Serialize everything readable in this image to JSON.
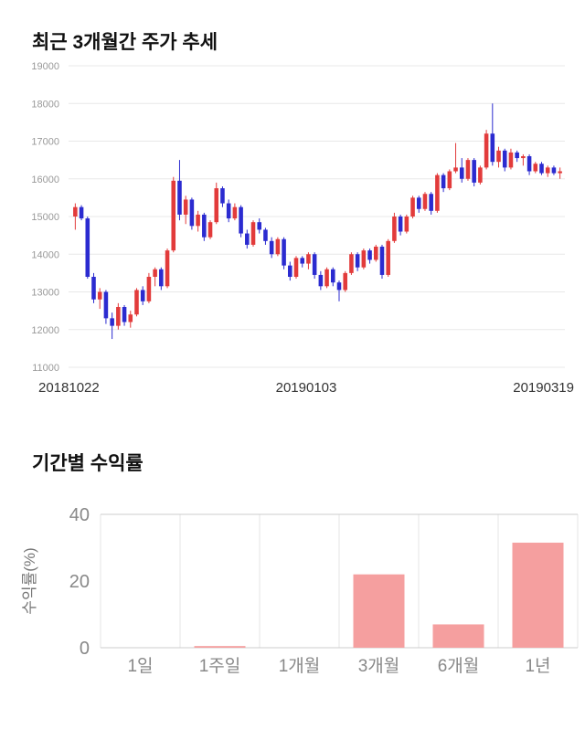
{
  "price_section": {
    "title": "최근 3개월간 주가 추세"
  },
  "returns_section": {
    "title": "기간별 수익률"
  },
  "chart_data": [
    {
      "type": "candlestick",
      "title": "최근 3개월간 주가 추세",
      "ylim": [
        11000,
        19000
      ],
      "yticks": [
        19000,
        18000,
        17000,
        16000,
        15000,
        14000,
        13000,
        12000,
        11000
      ],
      "xticklabels": [
        "20181022",
        "20190103",
        "20190319"
      ],
      "up_color": "#e23b3b",
      "down_color": "#2b2bd0",
      "grid_color": "#e8e8e8",
      "tick_color": "#999999",
      "candles": [
        [
          15000,
          15350,
          14650,
          15250
        ],
        [
          15250,
          15300,
          14900,
          14950
        ],
        [
          14950,
          15000,
          13350,
          13400
        ],
        [
          13400,
          13500,
          12700,
          12800
        ],
        [
          12800,
          13100,
          12550,
          13000
        ],
        [
          13000,
          13050,
          12150,
          12300
        ],
        [
          12300,
          12450,
          11750,
          12100
        ],
        [
          12100,
          12700,
          12000,
          12600
        ],
        [
          12600,
          12650,
          12100,
          12200
        ],
        [
          12200,
          12500,
          12050,
          12400
        ],
        [
          12400,
          13100,
          12350,
          13050
        ],
        [
          13050,
          13150,
          12650,
          12750
        ],
        [
          12750,
          13500,
          12700,
          13400
        ],
        [
          13400,
          13650,
          13150,
          13600
        ],
        [
          13600,
          13650,
          13050,
          13150
        ],
        [
          13150,
          14150,
          13100,
          14100
        ],
        [
          14100,
          16050,
          14050,
          15950
        ],
        [
          15950,
          16500,
          14900,
          15050
        ],
        [
          15050,
          15550,
          14800,
          15450
        ],
        [
          15450,
          15500,
          14650,
          14750
        ],
        [
          14750,
          15150,
          14600,
          15050
        ],
        [
          15050,
          15100,
          14350,
          14450
        ],
        [
          14450,
          14900,
          14400,
          14850
        ],
        [
          14850,
          15900,
          14800,
          15750
        ],
        [
          15750,
          15800,
          15250,
          15350
        ],
        [
          15350,
          15450,
          14850,
          14950
        ],
        [
          14950,
          15350,
          14900,
          15250
        ],
        [
          15250,
          15300,
          14450,
          14550
        ],
        [
          14550,
          14650,
          14150,
          14250
        ],
        [
          14250,
          14900,
          14200,
          14850
        ],
        [
          14850,
          14950,
          14550,
          14650
        ],
        [
          14650,
          14700,
          14250,
          14350
        ],
        [
          14350,
          14450,
          13900,
          14000
        ],
        [
          14000,
          14450,
          13950,
          14400
        ],
        [
          14400,
          14450,
          13600,
          13700
        ],
        [
          13700,
          13800,
          13300,
          13400
        ],
        [
          13400,
          13950,
          13350,
          13900
        ],
        [
          13900,
          13950,
          13650,
          13750
        ],
        [
          13750,
          14050,
          13600,
          14000
        ],
        [
          14000,
          14050,
          13350,
          13450
        ],
        [
          13450,
          13550,
          13050,
          13150
        ],
        [
          13150,
          13650,
          13100,
          13600
        ],
        [
          13600,
          13650,
          13150,
          13250
        ],
        [
          13250,
          13300,
          12750,
          13050
        ],
        [
          13050,
          13550,
          13000,
          13500
        ],
        [
          13500,
          14050,
          13450,
          14000
        ],
        [
          14000,
          14050,
          13550,
          13650
        ],
        [
          13650,
          14150,
          13600,
          14100
        ],
        [
          14100,
          14150,
          13750,
          13850
        ],
        [
          13850,
          14250,
          13800,
          14200
        ],
        [
          14200,
          14250,
          13350,
          13450
        ],
        [
          13450,
          14400,
          13400,
          14350
        ],
        [
          14350,
          15100,
          14300,
          15000
        ],
        [
          15000,
          15050,
          14500,
          14600
        ],
        [
          14600,
          15050,
          14550,
          15000
        ],
        [
          15000,
          15550,
          14950,
          15500
        ],
        [
          15500,
          15550,
          15100,
          15200
        ],
        [
          15200,
          15650,
          15150,
          15600
        ],
        [
          15600,
          15650,
          15050,
          15150
        ],
        [
          15150,
          16150,
          15100,
          16100
        ],
        [
          16100,
          16150,
          15650,
          15750
        ],
        [
          15750,
          16250,
          15700,
          16200
        ],
        [
          16200,
          16950,
          16150,
          16300
        ],
        [
          16300,
          16550,
          15900,
          16000
        ],
        [
          16000,
          16550,
          15950,
          16500
        ],
        [
          16500,
          16550,
          15800,
          15900
        ],
        [
          15900,
          16350,
          15850,
          16300
        ],
        [
          16300,
          17300,
          16250,
          17200
        ],
        [
          17200,
          18000,
          16350,
          16450
        ],
        [
          16450,
          16850,
          16300,
          16750
        ],
        [
          16750,
          16800,
          16200,
          16300
        ],
        [
          16300,
          16800,
          16250,
          16700
        ],
        [
          16700,
          16750,
          16450,
          16550
        ],
        [
          16550,
          16650,
          16350,
          16600
        ],
        [
          16600,
          16650,
          16100,
          16200
        ],
        [
          16200,
          16450,
          16150,
          16400
        ],
        [
          16400,
          16450,
          16100,
          16150
        ],
        [
          16150,
          16350,
          16050,
          16300
        ],
        [
          16300,
          16350,
          16100,
          16150
        ],
        [
          16150,
          16300,
          16000,
          16200
        ]
      ]
    },
    {
      "type": "bar",
      "title": "기간별 수익률",
      "categories": [
        "1일",
        "1주일",
        "1개월",
        "3개월",
        "6개월",
        "1년"
      ],
      "values": [
        0,
        0.5,
        0,
        22,
        7,
        31.5
      ],
      "ylabel": "수익률(%)",
      "yticks": [
        0,
        20,
        40
      ],
      "ylim": [
        0,
        40
      ],
      "bar_color": "#f59f9f",
      "axis_color": "#cccccc",
      "grid_color": "#e5e5e5",
      "tick_color": "#888888"
    }
  ]
}
